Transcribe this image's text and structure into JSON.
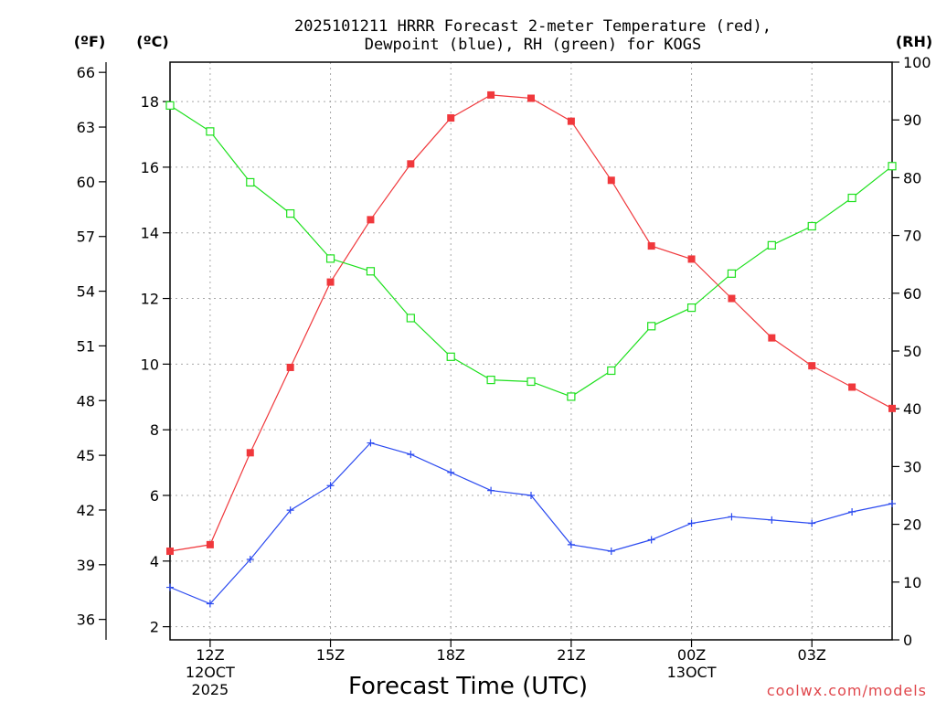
{
  "chart_data": {
    "type": "line",
    "title": "2025101211 HRRR Forecast 2-meter Temperature (red),",
    "title_line2": "Dewpoint (blue), RH (green) for KOGS",
    "units": {
      "fahrenheit": "(ºF)",
      "celsius": "(ºC)",
      "rh": "(RH)"
    },
    "xlabel": "Forecast Time (UTC)",
    "credit": "coolwx.com/models",
    "x_hours": [
      11,
      12,
      13,
      14,
      15,
      16,
      17,
      18,
      19,
      20,
      21,
      22,
      23,
      24,
      25,
      26,
      27,
      28,
      29
    ],
    "xlim": [
      11,
      29
    ],
    "x_ticks": [
      {
        "hour": 12,
        "label": "12Z",
        "sub1": "12OCT",
        "sub2": "2025"
      },
      {
        "hour": 15,
        "label": "15Z",
        "sub1": "",
        "sub2": ""
      },
      {
        "hour": 18,
        "label": "18Z",
        "sub1": "",
        "sub2": ""
      },
      {
        "hour": 21,
        "label": "21Z",
        "sub1": "",
        "sub2": ""
      },
      {
        "hour": 24,
        "label": "00Z",
        "sub1": "13OCT",
        "sub2": ""
      },
      {
        "hour": 27,
        "label": "03Z",
        "sub1": "",
        "sub2": ""
      }
    ],
    "celsius_axis": {
      "ylim": [
        1.6,
        19.2
      ],
      "ticks": [
        2,
        4,
        6,
        8,
        10,
        12,
        14,
        16,
        18
      ]
    },
    "fahrenheit_ticks": [
      36,
      39,
      42,
      45,
      48,
      51,
      54,
      57,
      60,
      63,
      66
    ],
    "rh_axis": {
      "ylim": [
        0,
        100
      ],
      "ticks": [
        0,
        10,
        20,
        30,
        40,
        50,
        60,
        70,
        80,
        90,
        100
      ]
    },
    "series": [
      {
        "name": "Temperature",
        "color": "#f0383c",
        "axis": "celsius",
        "marker": "filled-square",
        "values": [
          4.3,
          4.5,
          7.3,
          9.9,
          12.5,
          14.4,
          16.1,
          17.5,
          18.2,
          18.1,
          17.4,
          15.6,
          13.6,
          13.2,
          12.0,
          10.8,
          9.95,
          9.3,
          8.65
        ]
      },
      {
        "name": "Dewpoint",
        "color": "#2b4af0",
        "axis": "celsius",
        "marker": "plus",
        "values": [
          3.2,
          2.7,
          4.05,
          5.55,
          6.3,
          7.6,
          7.25,
          6.7,
          6.15,
          6.0,
          4.5,
          4.3,
          4.65,
          5.15,
          5.35,
          5.25,
          5.15,
          5.5,
          5.75
        ]
      },
      {
        "name": "RH",
        "color": "#1ee01e",
        "axis": "rh",
        "marker": "open-square",
        "values": [
          92.5,
          88.0,
          79.2,
          73.8,
          66.0,
          63.8,
          55.7,
          49.0,
          45.0,
          44.7,
          42.1,
          46.6,
          54.3,
          57.5,
          63.4,
          68.3,
          71.6,
          76.5,
          82.0
        ]
      }
    ]
  }
}
